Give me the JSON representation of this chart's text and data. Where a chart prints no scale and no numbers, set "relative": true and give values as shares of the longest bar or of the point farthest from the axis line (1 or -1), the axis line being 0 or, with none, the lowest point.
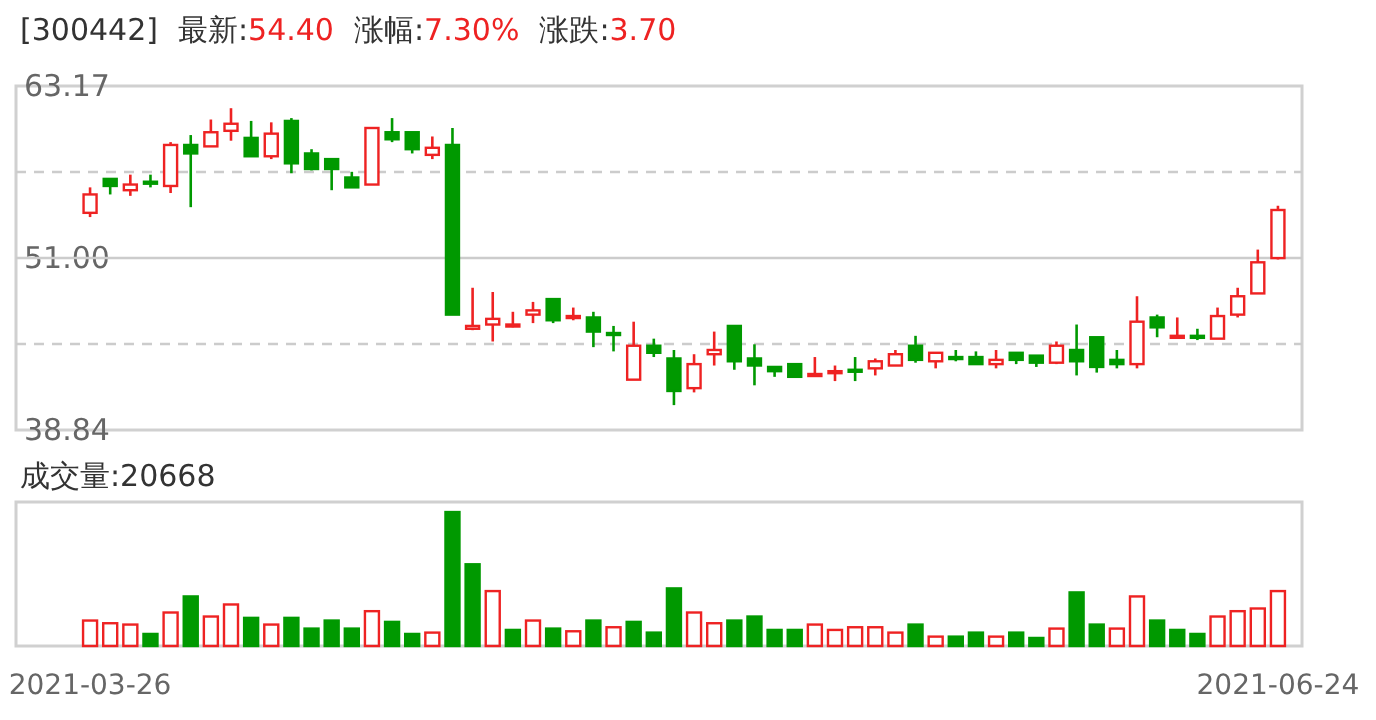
{
  "chart_data": [
    {
      "type": "candlestick",
      "title": "[300442]",
      "annotations": [
        "最新:54.40",
        "涨幅:7.30%",
        "涨跌:3.70"
      ],
      "colors": [
        "#ee2222",
        "#009900",
        "#ee2222",
        "#009900",
        "#ee2222",
        "#009900",
        "#ee2222",
        "#ee2222",
        "#009900",
        "#ee2222",
        "#009900",
        "#009900",
        "#009900",
        "#009900",
        "#ee2222",
        "#009900",
        "#009900",
        "#ee2222",
        "#009900",
        "#ee2222",
        "#ee2222",
        "#ee2222",
        "#ee2222",
        "#009900",
        "#ee2222",
        "#009900",
        "#009900",
        "#ee2222",
        "#009900",
        "#009900",
        "#ee2222",
        "#ee2222",
        "#009900",
        "#009900",
        "#009900",
        "#009900",
        "#ee2222",
        "#ee2222",
        "#009900",
        "#ee2222",
        "#ee2222",
        "#009900",
        "#ee2222",
        "#009900",
        "#009900",
        "#ee2222",
        "#009900",
        "#009900",
        "#ee2222",
        "#009900",
        "#009900",
        "#009900",
        "#ee2222",
        "#009900",
        "#ee2222",
        "#009900",
        "#ee2222",
        "#ee2222",
        "#ee2222",
        "#ee2222"
      ],
      "categories": [
        null,
        null,
        null,
        null,
        null,
        null,
        null,
        null,
        null,
        null,
        null,
        null,
        null,
        null,
        null,
        null,
        null,
        null,
        null,
        null,
        null,
        null,
        null,
        null,
        null,
        null,
        null,
        null,
        null,
        null,
        null,
        null,
        null,
        null,
        null,
        null,
        null,
        null,
        null,
        null,
        null,
        null,
        null,
        null,
        null,
        null,
        null,
        null,
        null,
        null,
        null,
        null,
        null,
        null,
        null,
        null,
        null,
        null,
        null,
        null
      ],
      "ylim": [
        38.84,
        63.17
      ],
      "yticks": [
        63.17,
        {
          "value": 57.09,
          "label": null
        },
        {
          "value": 51,
          "label": "51.00"
        },
        {
          "value": 44.92,
          "label": null
        },
        38.84
      ],
      "grid": "y",
      "tick_labels": "y",
      "ref_lines": [
        {
          "axis": "y",
          "value": 51,
          "color": "#cccccc",
          "line_style": "solid"
        }
      ],
      "ohlc": [
        [
          54.2,
          56.0,
          53.9,
          55.5
        ],
        [
          56.6,
          56.6,
          55.5,
          56.1
        ],
        [
          55.8,
          56.9,
          55.4,
          56.2
        ],
        [
          56.4,
          56.9,
          56.0,
          56.3
        ],
        [
          56.1,
          59.2,
          55.6,
          59.0
        ],
        [
          59.0,
          59.7,
          54.6,
          58.4
        ],
        [
          58.9,
          60.8,
          58.9,
          59.9
        ],
        [
          60.0,
          61.6,
          59.3,
          60.5
        ],
        [
          59.5,
          60.7,
          58.2,
          58.2
        ],
        [
          58.2,
          60.6,
          58.0,
          59.8
        ],
        [
          60.7,
          60.9,
          57.0,
          57.7
        ],
        [
          58.4,
          58.7,
          57.2,
          57.3
        ],
        [
          58.0,
          58.0,
          55.8,
          57.3
        ],
        [
          56.7,
          57.1,
          56.0,
          56.0
        ],
        [
          56.2,
          60.2,
          56.2,
          60.2
        ],
        [
          59.9,
          60.9,
          59.2,
          59.4
        ],
        [
          59.9,
          59.9,
          58.4,
          58.7
        ],
        [
          58.3,
          59.6,
          58.0,
          58.8
        ],
        [
          59.0,
          60.2,
          47.0,
          47.0
        ],
        [
          46.0,
          48.9,
          45.9,
          46.2
        ],
        [
          46.3,
          48.6,
          45.1,
          46.7
        ],
        [
          46.2,
          47.2,
          46.1,
          46.3
        ],
        [
          47.0,
          47.9,
          46.4,
          47.3
        ],
        [
          48.1,
          48.1,
          46.4,
          46.6
        ],
        [
          46.8,
          47.5,
          46.6,
          46.9
        ],
        [
          46.8,
          47.2,
          44.7,
          45.8
        ],
        [
          45.7,
          46.2,
          44.4,
          45.6
        ],
        [
          42.4,
          46.5,
          42.4,
          44.8
        ],
        [
          44.8,
          45.3,
          44.0,
          44.3
        ],
        [
          43.9,
          44.5,
          40.6,
          41.6
        ],
        [
          41.8,
          44.2,
          41.5,
          43.5
        ],
        [
          44.2,
          45.8,
          43.4,
          44.5
        ],
        [
          46.2,
          46.2,
          43.1,
          43.7
        ],
        [
          43.9,
          44.9,
          42.0,
          43.4
        ],
        [
          43.3,
          43.3,
          42.6,
          43.0
        ],
        [
          43.5,
          43.5,
          42.6,
          42.6
        ],
        [
          42.7,
          44.0,
          42.6,
          42.8
        ],
        [
          42.9,
          43.4,
          42.3,
          43.0
        ],
        [
          43.1,
          44.0,
          42.3,
          43.0
        ],
        [
          43.2,
          43.9,
          42.7,
          43.7
        ],
        [
          43.4,
          44.5,
          43.4,
          44.2
        ],
        [
          44.8,
          45.5,
          43.6,
          43.8
        ],
        [
          43.7,
          44.3,
          43.2,
          44.3
        ],
        [
          44.0,
          44.5,
          43.7,
          43.9
        ],
        [
          44.0,
          44.4,
          43.5,
          43.5
        ],
        [
          43.5,
          44.5,
          43.2,
          43.8
        ],
        [
          44.3,
          44.3,
          43.5,
          43.8
        ],
        [
          44.1,
          44.1,
          43.3,
          43.6
        ],
        [
          43.6,
          45.1,
          43.5,
          44.8
        ],
        [
          44.5,
          46.3,
          42.7,
          43.7
        ],
        [
          45.4,
          45.4,
          42.9,
          43.3
        ],
        [
          43.8,
          44.5,
          43.2,
          43.5
        ],
        [
          43.5,
          48.3,
          43.2,
          46.5
        ],
        [
          46.8,
          47.0,
          45.4,
          46.1
        ],
        [
          45.4,
          46.8,
          45.4,
          45.5
        ],
        [
          45.5,
          46.0,
          45.2,
          45.4
        ],
        [
          45.3,
          47.5,
          45.3,
          46.9
        ],
        [
          47.0,
          48.9,
          46.8,
          48.3
        ],
        [
          48.5,
          51.6,
          48.5,
          50.7
        ],
        [
          51.0,
          54.7,
          50.9,
          54.4
        ]
      ]
    },
    {
      "type": "bar",
      "title": "成交量:20668",
      "relative": true,
      "tick_labels": "x",
      "categories": [
        "2021-03-26",
        null,
        null,
        null,
        null,
        null,
        null,
        null,
        null,
        null,
        null,
        null,
        null,
        null,
        null,
        null,
        null,
        null,
        null,
        null,
        null,
        null,
        null,
        null,
        null,
        null,
        null,
        null,
        null,
        null,
        null,
        null,
        null,
        null,
        null,
        null,
        null,
        null,
        null,
        null,
        null,
        null,
        null,
        null,
        null,
        null,
        null,
        null,
        null,
        null,
        null,
        null,
        null,
        null,
        null,
        null,
        null,
        null,
        null,
        "2021-06-24"
      ],
      "values": [
        0.19,
        0.17,
        0.16,
        0.09,
        0.25,
        0.37,
        0.22,
        0.31,
        0.21,
        0.16,
        0.21,
        0.13,
        0.19,
        0.13,
        0.26,
        0.18,
        0.09,
        0.1,
        1,
        0.61,
        0.41,
        0.12,
        0.19,
        0.13,
        0.11,
        0.19,
        0.14,
        0.18,
        0.1,
        0.43,
        0.25,
        0.17,
        0.19,
        0.22,
        0.12,
        0.12,
        0.16,
        0.12,
        0.14,
        0.14,
        0.1,
        0.16,
        0.07,
        0.07,
        0.1,
        0.07,
        0.1,
        0.06,
        0.13,
        0.4,
        0.16,
        0.13,
        0.37,
        0.19,
        0.12,
        0.09,
        0.22,
        0.26,
        0.28,
        0.41
      ],
      "colors": [
        "#ee2222",
        "#ee2222",
        "#ee2222",
        "#009900",
        "#ee2222",
        "#009900",
        "#ee2222",
        "#ee2222",
        "#009900",
        "#ee2222",
        "#009900",
        "#009900",
        "#009900",
        "#009900",
        "#ee2222",
        "#009900",
        "#009900",
        "#ee2222",
        "#009900",
        "#009900",
        "#ee2222",
        "#009900",
        "#ee2222",
        "#009900",
        "#ee2222",
        "#009900",
        "#ee2222",
        "#009900",
        "#009900",
        "#009900",
        "#ee2222",
        "#ee2222",
        "#009900",
        "#009900",
        "#009900",
        "#009900",
        "#ee2222",
        "#ee2222",
        "#ee2222",
        "#ee2222",
        "#ee2222",
        "#009900",
        "#ee2222",
        "#009900",
        "#009900",
        "#ee2222",
        "#009900",
        "#009900",
        "#ee2222",
        "#009900",
        "#009900",
        "#ee2222",
        "#ee2222",
        "#009900",
        "#009900",
        "#009900",
        "#ee2222",
        "#ee2222",
        "#ee2222",
        "#ee2222"
      ]
    }
  ]
}
